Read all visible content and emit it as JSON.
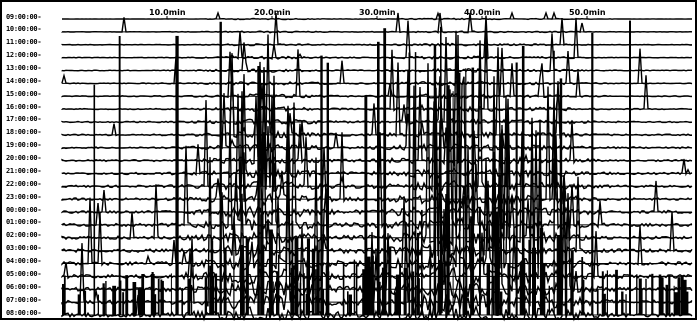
{
  "chart_data": {
    "type": "line",
    "title": "",
    "xlabel": "",
    "ylabel": "",
    "x_ticks": [
      "10.0min",
      "20.0min",
      "30.0min",
      "40.0min",
      "50.0min"
    ],
    "x_tick_values": [
      10,
      20,
      30,
      40,
      50
    ],
    "xlim": [
      0,
      60
    ],
    "rows": [
      "09:00:00-",
      "10:00:00-",
      "11:00:00-",
      "12:00:00-",
      "13:00:00-",
      "14:00:00-",
      "15:00:00-",
      "16:00:00-",
      "17:00:00-",
      "18:00:00-",
      "19:00:00-",
      "20:00:00-",
      "21:00:00-",
      "22:00:00-",
      "23:00:00-",
      "00:00:00-",
      "01:00:00-",
      "02:00:00-",
      "03:00:00-",
      "04:00:00-",
      "05:00:00-",
      "06:00:00-",
      "07:00:00-",
      "08:00:00-"
    ],
    "grid": true,
    "legend": "none",
    "line_color": "#000000"
  }
}
